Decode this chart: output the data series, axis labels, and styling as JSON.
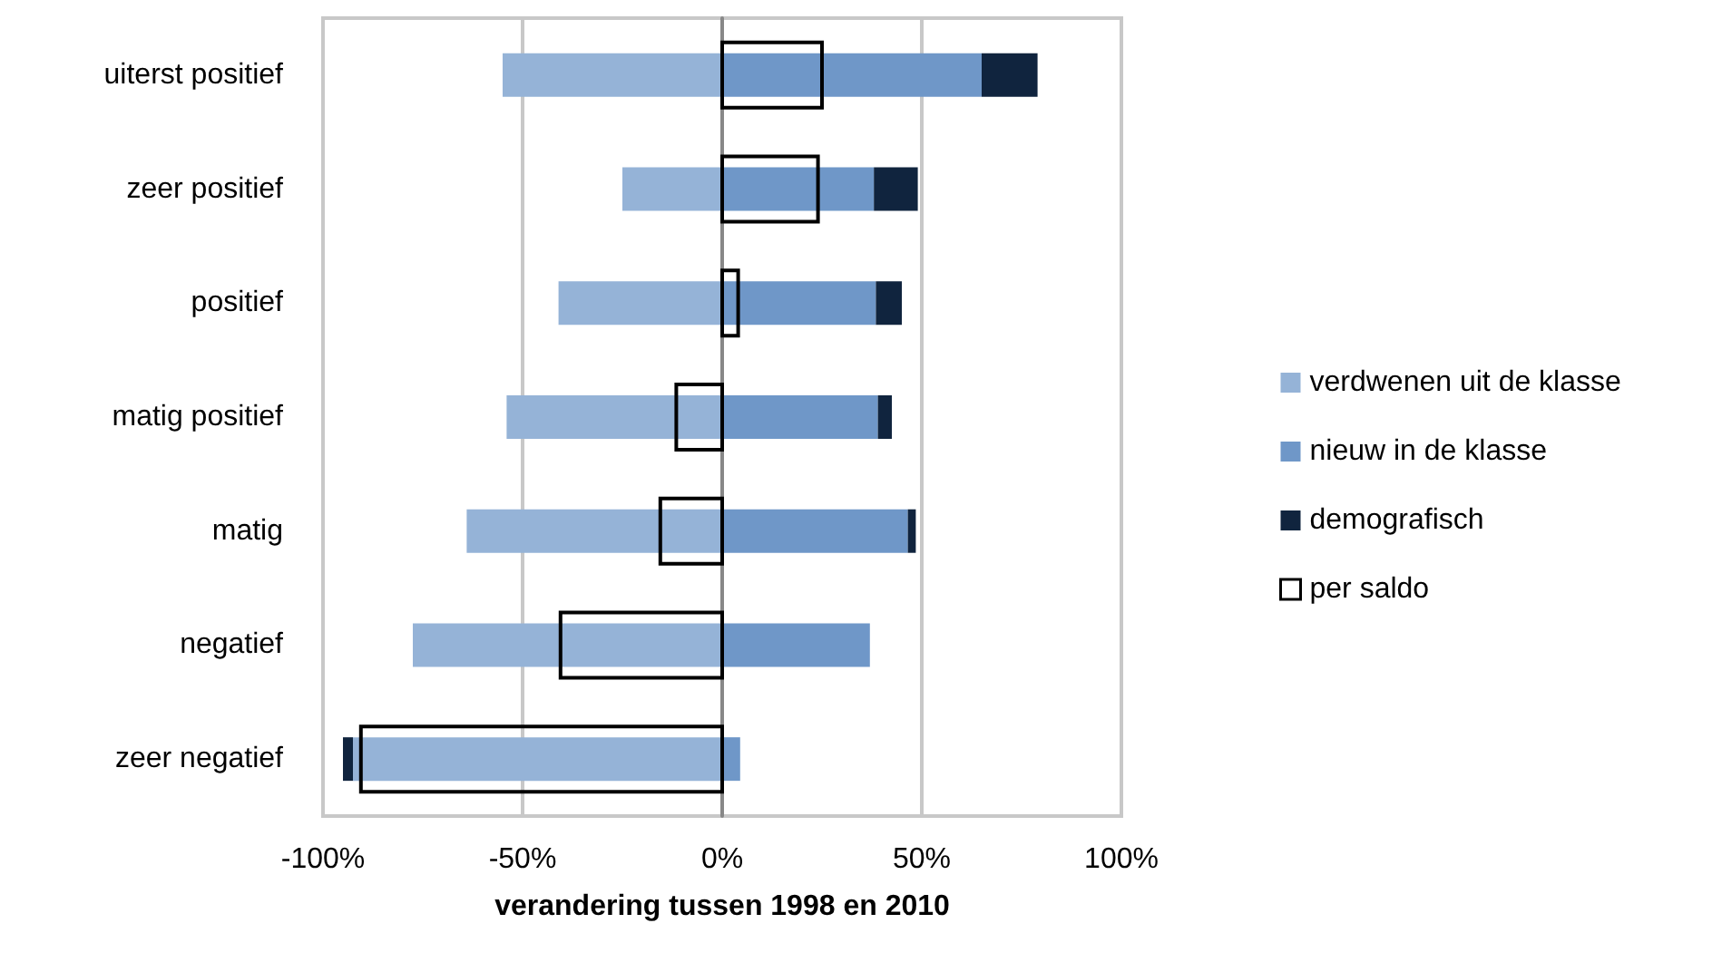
{
  "chart_data": {
    "type": "bar",
    "orientation": "horizontal",
    "xlabel": "verandering tussen 1998 en 2010",
    "categories": [
      "uiterst positief",
      "zeer positief",
      "positief",
      "matig positief",
      "matig",
      "negatief",
      "zeer negatief"
    ],
    "series": [
      {
        "name": "verdwenen uit de klasse",
        "color": "#95b3d7",
        "base": [
          0,
          0,
          0,
          0,
          0,
          0,
          0
        ],
        "values": [
          -55,
          -25,
          -41,
          -54,
          -64,
          -77.5,
          -92.5
        ]
      },
      {
        "name": "nieuw in de klasse",
        "color": "#6f97c8",
        "base": [
          0,
          0,
          0,
          0,
          0,
          0,
          0
        ],
        "values": [
          65,
          38,
          38.5,
          39,
          46.5,
          37,
          4.5
        ]
      },
      {
        "name": "demografisch",
        "color": "#10243e",
        "base": [
          65,
          38,
          38.5,
          39,
          46.5,
          null,
          -92.5
        ],
        "values": [
          14,
          11,
          6.5,
          3.5,
          2,
          null,
          -2.5
        ]
      },
      {
        "name": "per saldo",
        "color": "#000000",
        "line_style": "solid",
        "base": [
          0,
          0,
          0,
          0,
          0,
          0,
          0
        ],
        "values": [
          25,
          24,
          4,
          -11.5,
          -15.5,
          -40.5,
          -90.5
        ]
      }
    ],
    "xlim": [
      -100,
      100
    ],
    "xticks": [
      {
        "value": -100,
        "label": "-100%"
      },
      {
        "value": -50,
        "label": "-50%"
      },
      {
        "value": 0,
        "label": "0%"
      },
      {
        "value": 50,
        "label": "50%"
      },
      {
        "value": 100,
        "label": "100%"
      }
    ],
    "grid": "x",
    "legend": "right"
  }
}
